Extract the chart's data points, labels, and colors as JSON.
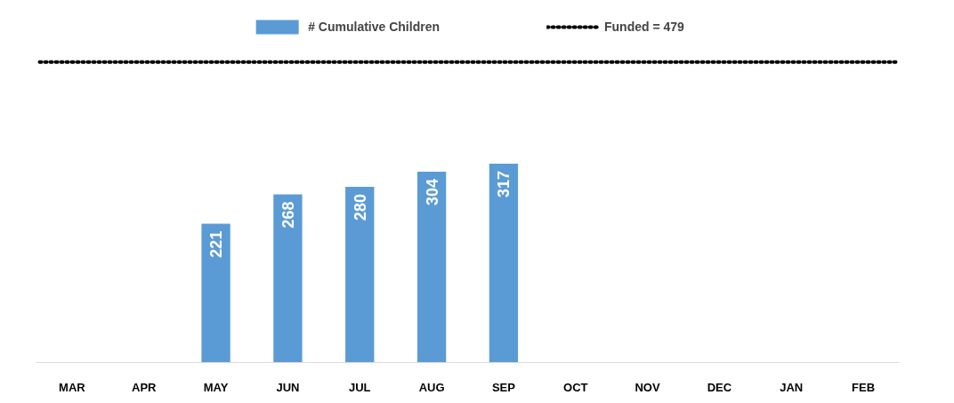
{
  "chart_data": {
    "type": "bar",
    "categories": [
      "MAR",
      "APR",
      "MAY",
      "JUN",
      "JUL",
      "AUG",
      "SEP",
      "OCT",
      "NOV",
      "DEC",
      "JAN",
      "FEB"
    ],
    "series": [
      {
        "name": "# Cumulative Children",
        "color": "#5b9bd5",
        "values": [
          null,
          null,
          221,
          268,
          280,
          304,
          317,
          null,
          null,
          null,
          null,
          null
        ]
      }
    ],
    "ref_lines": [
      {
        "axis": "y",
        "value": 479,
        "label": "Funded = 479",
        "color": "#000000",
        "line_style": "dotted"
      }
    ],
    "data_labels": true,
    "legend": "top"
  }
}
